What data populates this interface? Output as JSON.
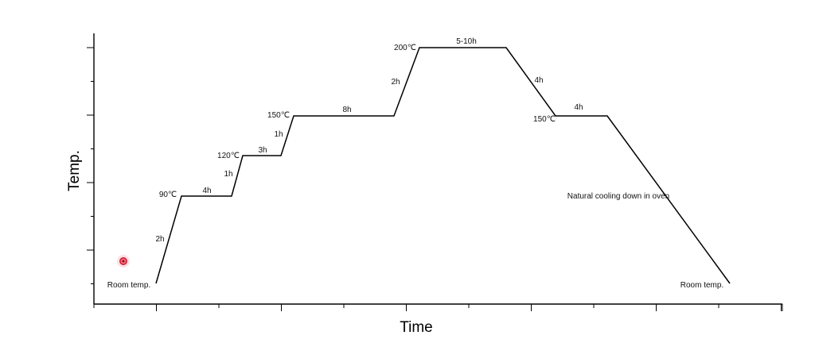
{
  "chart_data": {
    "type": "line",
    "xlabel": "Time",
    "ylabel": "Temp.",
    "grid": false,
    "series": [
      {
        "points": [
          {
            "t": 0,
            "temp": 25
          },
          {
            "t": 2,
            "temp": 90
          },
          {
            "t": 6,
            "temp": 90
          },
          {
            "t": 7,
            "temp": 120
          },
          {
            "t": 10,
            "temp": 120
          },
          {
            "t": 11,
            "temp": 150
          },
          {
            "t": 19,
            "temp": 150
          },
          {
            "t": 21,
            "temp": 200
          },
          {
            "t": 28,
            "temp": 200
          },
          {
            "t": 32,
            "temp": 150
          },
          {
            "t": 36,
            "temp": 150
          },
          {
            "t": 46,
            "temp": 25
          }
        ]
      }
    ],
    "annotations": [
      {
        "id": "room-start",
        "text": "Room temp."
      },
      {
        "id": "ramp-1",
        "text": "2h"
      },
      {
        "id": "temp-90",
        "text": "90℃"
      },
      {
        "id": "hold-90",
        "text": "4h"
      },
      {
        "id": "ramp-2",
        "text": "1h"
      },
      {
        "id": "temp-120",
        "text": "120℃"
      },
      {
        "id": "hold-120",
        "text": "3h"
      },
      {
        "id": "ramp-3",
        "text": "1h"
      },
      {
        "id": "temp-150",
        "text": "150℃"
      },
      {
        "id": "hold-150",
        "text": "8h"
      },
      {
        "id": "ramp-4",
        "text": "2h"
      },
      {
        "id": "temp-200",
        "text": "200℃"
      },
      {
        "id": "hold-200",
        "text": "5-10h"
      },
      {
        "id": "cool-1",
        "text": "4h"
      },
      {
        "id": "temp-150b",
        "text": "150℃"
      },
      {
        "id": "hold-150b",
        "text": "4h"
      },
      {
        "id": "natural",
        "text": "Natural cooling down in oven"
      },
      {
        "id": "room-end",
        "text": "Room temp."
      }
    ]
  }
}
